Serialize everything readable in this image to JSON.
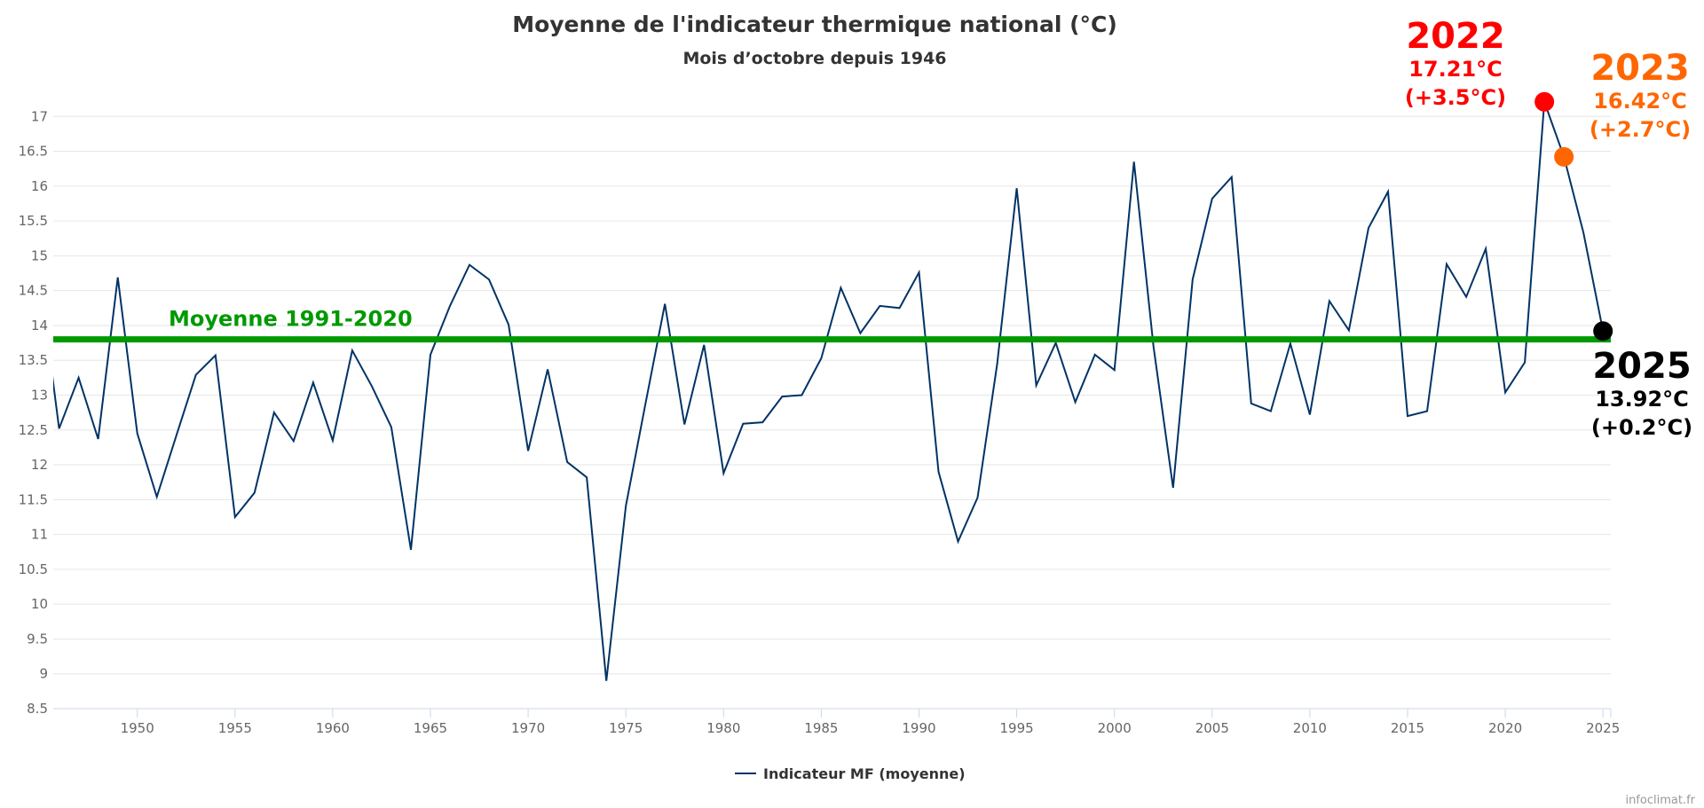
{
  "chart_data": {
    "type": "line",
    "title": "Moyenne de l'indicateur thermique national (°C)",
    "subtitle": "Mois d’octobre depuis 1946",
    "xlabel": "",
    "ylabel": "",
    "xlim": [
      1945.7,
      2025.4
    ],
    "ylim": [
      8.5,
      17.5
    ],
    "grid": true,
    "x_ticks": [
      1950,
      1955,
      1960,
      1965,
      1970,
      1975,
      1980,
      1985,
      1990,
      1995,
      2000,
      2005,
      2010,
      2015,
      2020,
      2025
    ],
    "y_ticks": [
      8.5,
      9,
      9.5,
      10,
      10.5,
      11,
      11.5,
      12,
      12.5,
      13,
      13.5,
      14,
      14.5,
      15,
      15.5,
      16,
      16.5,
      17
    ],
    "legend_position": "bottom-center",
    "series": [
      {
        "name": "Indicateur MF (moyenne)",
        "color": "#003366",
        "x": [
          1945,
          1946,
          1947,
          1948,
          1949,
          1950,
          1951,
          1952,
          1953,
          1954,
          1955,
          1956,
          1957,
          1958,
          1959,
          1960,
          1961,
          1962,
          1963,
          1964,
          1965,
          1966,
          1967,
          1968,
          1969,
          1970,
          1971,
          1972,
          1973,
          1974,
          1975,
          1976,
          1977,
          1978,
          1979,
          1980,
          1981,
          1982,
          1983,
          1984,
          1985,
          1986,
          1987,
          1988,
          1989,
          1990,
          1991,
          1992,
          1993,
          1994,
          1995,
          1996,
          1997,
          1998,
          1999,
          2000,
          2001,
          2002,
          2003,
          2004,
          2005,
          2006,
          2007,
          2008,
          2009,
          2010,
          2011,
          2012,
          2013,
          2014,
          2015,
          2016,
          2017,
          2018,
          2019,
          2020,
          2021,
          2022,
          2023,
          2024,
          2025
        ],
        "values": [
          14.7,
          12.52,
          13.25,
          12.37,
          14.69,
          12.45,
          11.54,
          12.42,
          13.29,
          13.57,
          11.25,
          11.6,
          12.75,
          12.34,
          13.18,
          12.35,
          13.64,
          13.13,
          12.54,
          10.78,
          13.58,
          14.28,
          14.87,
          14.66,
          14.01,
          12.2,
          13.37,
          12.04,
          11.82,
          8.9,
          11.41,
          12.87,
          14.31,
          12.58,
          13.72,
          11.88,
          12.59,
          12.61,
          12.98,
          13.0,
          13.53,
          14.54,
          13.89,
          14.28,
          14.25,
          14.76,
          11.9,
          10.9,
          11.53,
          13.45,
          15.97,
          13.14,
          13.75,
          12.9,
          13.58,
          13.36,
          16.35,
          13.7,
          11.67,
          14.66,
          15.82,
          16.13,
          12.88,
          12.77,
          13.74,
          12.72,
          14.35,
          13.93,
          15.4,
          15.92,
          12.7,
          12.77,
          14.88,
          14.41,
          15.1,
          13.04,
          13.47,
          17.21,
          16.42,
          15.33,
          13.92
        ]
      }
    ],
    "reference_line": {
      "label": "Moyenne 1991-2020",
      "value": 13.8,
      "color": "#009900"
    },
    "annotations": [
      {
        "year": 2022,
        "year_label": "2022",
        "value_label": "17.21°C",
        "anomaly_label": "(+3.5°C)",
        "value": 17.21,
        "color": "#ff0000"
      },
      {
        "year": 2023,
        "year_label": "2023",
        "value_label": "16.42°C",
        "anomaly_label": "(+2.7°C)",
        "value": 16.42,
        "color": "#ff6600"
      },
      {
        "year": 2025,
        "year_label": "2025",
        "value_label": "13.92°C",
        "anomaly_label": "(+0.2°C)",
        "value": 13.92,
        "color": "#000000"
      }
    ],
    "credit": "infoclimat.fr"
  }
}
